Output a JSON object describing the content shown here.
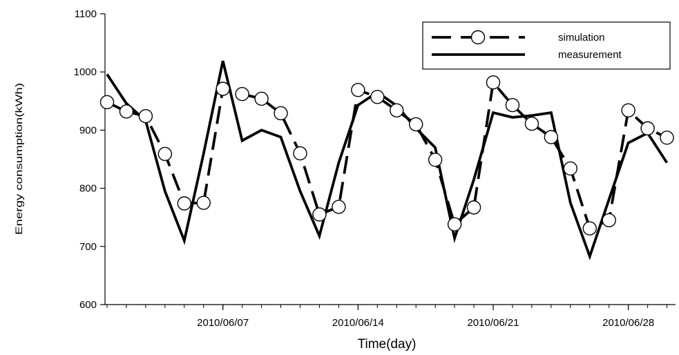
{
  "chart_data": {
    "type": "line",
    "xlabel": "Time(day)",
    "ylabel": "Energy consumption(kWh)",
    "ylim": [
      600,
      1100
    ],
    "yticks": [
      600,
      700,
      800,
      900,
      1000,
      1100
    ],
    "x_dates": [
      "2010/06/01",
      "2010/06/02",
      "2010/06/03",
      "2010/06/04",
      "2010/06/05",
      "2010/06/06",
      "2010/06/07",
      "2010/06/08",
      "2010/06/09",
      "2010/06/10",
      "2010/06/11",
      "2010/06/12",
      "2010/06/13",
      "2010/06/14",
      "2010/06/15",
      "2010/06/16",
      "2010/06/17",
      "2010/06/18",
      "2010/06/19",
      "2010/06/20",
      "2010/06/21",
      "2010/06/22",
      "2010/06/23",
      "2010/06/24",
      "2010/06/25",
      "2010/06/26",
      "2010/06/27",
      "2010/06/28",
      "2010/06/29",
      "2010/06/30"
    ],
    "x_tick_labels": [
      "2010/06/07",
      "2010/06/14",
      "2010/06/21",
      "2010/06/28"
    ],
    "grid": false,
    "legend_position": "top-right",
    "series": [
      {
        "name": "simulation",
        "style": "dashed-circle",
        "color": "#000000",
        "values": [
          948,
          932,
          924,
          859,
          774,
          775,
          971,
          962,
          954,
          929,
          860,
          755,
          768,
          969,
          957,
          934,
          910,
          849,
          738,
          767,
          982,
          943,
          911,
          888,
          834,
          731,
          745,
          934,
          903,
          887
        ]
      },
      {
        "name": "measurement",
        "style": "solid",
        "color": "#000000",
        "values": [
          996,
          946,
          916,
          795,
          710,
          860,
          1019,
          882,
          900,
          888,
          795,
          718,
          844,
          943,
          965,
          942,
          903,
          870,
          714,
          815,
          930,
          922,
          925,
          930,
          775,
          683,
          781,
          878,
          895,
          844
        ]
      }
    ]
  }
}
